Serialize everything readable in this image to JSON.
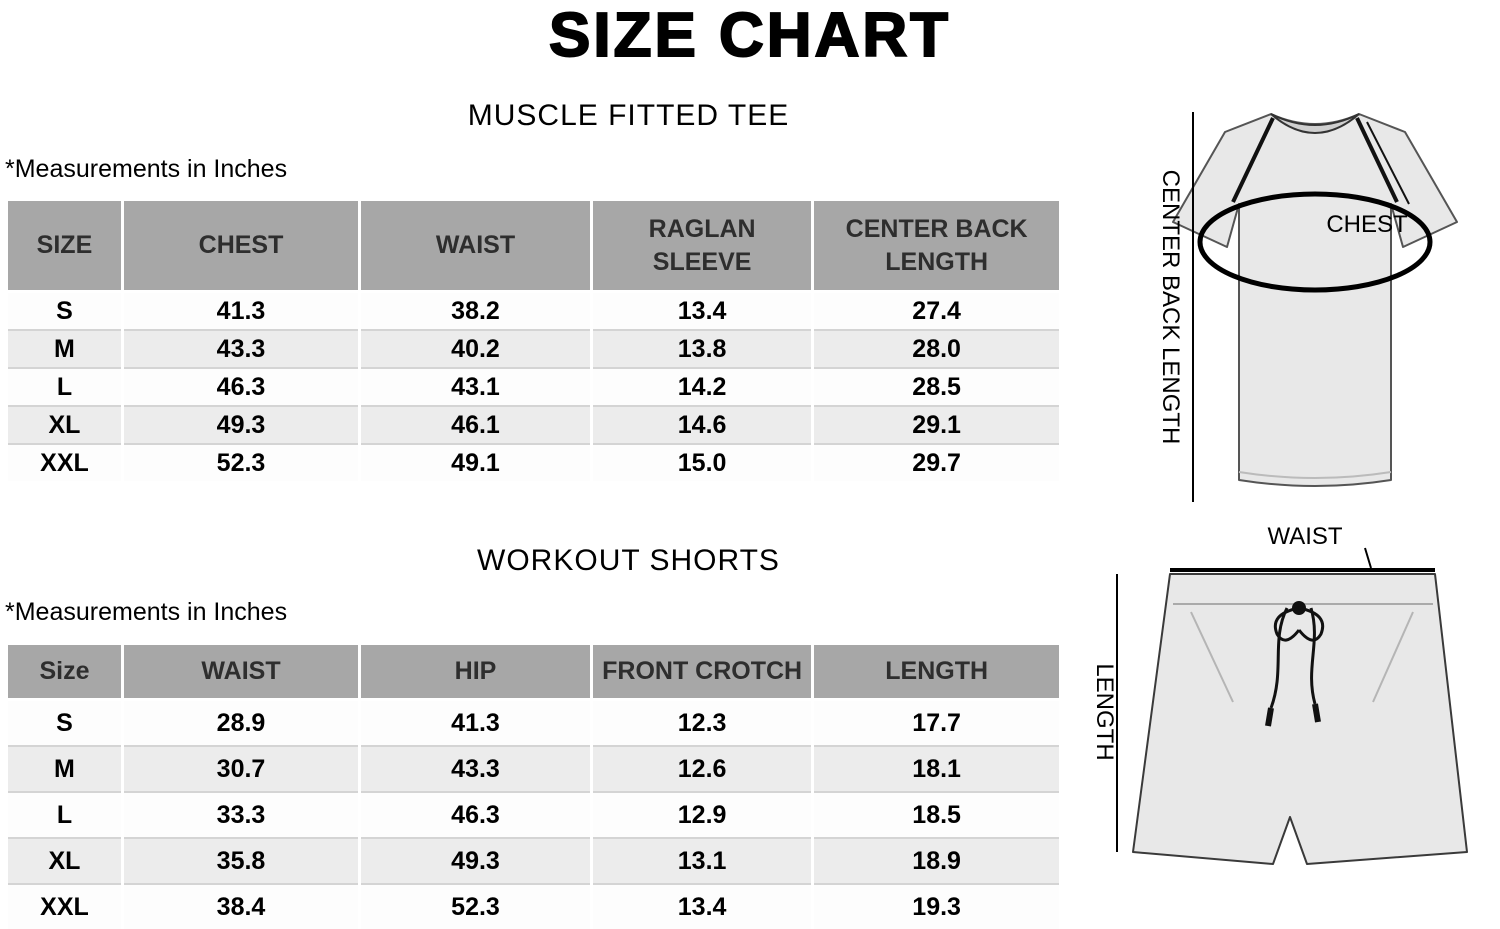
{
  "page": {
    "title": "SIZE CHART"
  },
  "sections": [
    {
      "heading": "MUSCLE FITTED TEE",
      "note": "*Measurements in Inches"
    },
    {
      "heading": "WORKOUT SHORTS",
      "note": "*Measurements in Inches"
    }
  ],
  "chart_data": [
    {
      "type": "table",
      "title": "MUSCLE FITTED TEE",
      "units": "inches",
      "columns": [
        "SIZE",
        "CHEST",
        "WAIST",
        "RAGLAN\nSLEEVE",
        "CENTER BACK\nLENGTH"
      ],
      "rows": [
        [
          "S",
          "41.3",
          "38.2",
          "13.4",
          "27.4"
        ],
        [
          "M",
          "43.3",
          "40.2",
          "13.8",
          "28.0"
        ],
        [
          "L",
          "46.3",
          "43.1",
          "14.2",
          "28.5"
        ],
        [
          "XL",
          "49.3",
          "46.1",
          "14.6",
          "29.1"
        ],
        [
          "XXL",
          "52.3",
          "49.1",
          "15.0",
          "29.7"
        ]
      ]
    },
    {
      "type": "table",
      "title": "WORKOUT SHORTS",
      "units": "inches",
      "columns": [
        "Size",
        "WAIST",
        "HIP",
        "FRONT CROTCH",
        "LENGTH"
      ],
      "rows": [
        [
          "S",
          "28.9",
          "41.3",
          "12.3",
          "17.7"
        ],
        [
          "M",
          "30.7",
          "43.3",
          "12.6",
          "18.1"
        ],
        [
          "L",
          "33.3",
          "46.3",
          "12.9",
          "18.5"
        ],
        [
          "XL",
          "35.8",
          "49.3",
          "13.1",
          "18.9"
        ],
        [
          "XXL",
          "38.4",
          "52.3",
          "13.4",
          "19.3"
        ]
      ]
    }
  ],
  "diagrams": {
    "tee": {
      "chest_label": "CHEST",
      "back_length_label": "CENTER BACK LENGTH"
    },
    "shorts": {
      "waist_label": "WAIST",
      "length_label": "LENGTH"
    }
  },
  "colors": {
    "header_bg": "#a7a7a7",
    "row_alt": "#ececec",
    "garment_fill": "#e8e8e8",
    "line": "#000000"
  }
}
